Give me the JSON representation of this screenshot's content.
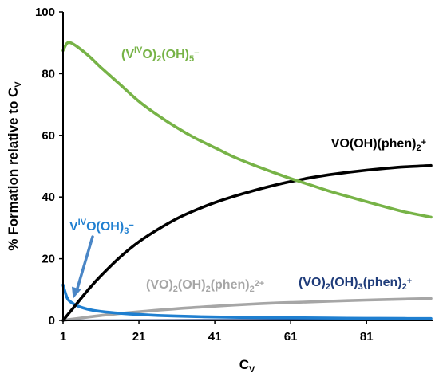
{
  "chart_data": {
    "type": "line",
    "xlabel": {
      "base": "C",
      "sub": "V"
    },
    "ylabel": {
      "text": "% Formation relative to C",
      "sub": "V"
    },
    "xlim": [
      1,
      98
    ],
    "ylim": [
      0,
      100
    ],
    "xticks": [
      1,
      21,
      41,
      61,
      81
    ],
    "yticks": [
      0,
      20,
      40,
      60,
      80,
      100
    ],
    "xtick_labels": [
      "1",
      "21",
      "41",
      "61",
      "81"
    ],
    "ytick_labels": [
      "0",
      "20",
      "40",
      "60",
      "80",
      "100"
    ],
    "grid": false,
    "series": [
      {
        "label_parts": [
          [
            "(V",
            ""
          ],
          [
            "IV",
            "sup"
          ],
          [
            "O)",
            ""
          ],
          [
            "2",
            "sub"
          ],
          [
            "(OH)",
            ""
          ],
          [
            "5",
            "sub"
          ],
          [
            "−",
            "sup"
          ]
        ],
        "color": "#77b347",
        "x": [
          1,
          2,
          3,
          5,
          8,
          11,
          16,
          21,
          26,
          31,
          36,
          41,
          46,
          51,
          56,
          61,
          66,
          71,
          76,
          81,
          86,
          91,
          98
        ],
        "y": [
          87.5,
          89.8,
          90.0,
          88.5,
          85.5,
          82.0,
          76.5,
          71.0,
          66.5,
          62.5,
          59.0,
          56.0,
          53.0,
          50.5,
          48.2,
          46.0,
          44.0,
          42.0,
          40.2,
          38.5,
          36.8,
          35.2,
          33.5
        ]
      },
      {
        "label_parts": [
          [
            "VO(OH)(phen)",
            ""
          ],
          [
            "2",
            "sub"
          ],
          [
            "+",
            "sup"
          ]
        ],
        "color": "#000000",
        "x": [
          1,
          3,
          5,
          8,
          11,
          16,
          21,
          26,
          31,
          36,
          41,
          46,
          51,
          56,
          61,
          66,
          71,
          76,
          81,
          86,
          91,
          98
        ],
        "y": [
          0,
          3.0,
          6.0,
          10.5,
          14.5,
          20.5,
          25.5,
          29.5,
          33.0,
          35.8,
          38.2,
          40.2,
          42.0,
          43.6,
          45.0,
          46.2,
          47.2,
          48.0,
          48.7,
          49.3,
          49.8,
          50.2
        ]
      },
      {
        "label_parts": [
          [
            "V",
            ""
          ],
          [
            "IV",
            "sup"
          ],
          [
            "O(OH)",
            ""
          ],
          [
            "3",
            "sub"
          ],
          [
            "−",
            "sup"
          ]
        ],
        "color": "#1f7fd0",
        "x": [
          1,
          2,
          3,
          5,
          8,
          11,
          16,
          21,
          26,
          31,
          36,
          41,
          51,
          61,
          71,
          81,
          91,
          98
        ],
        "y": [
          11.5,
          7.5,
          6.0,
          4.6,
          3.5,
          2.9,
          2.3,
          1.9,
          1.6,
          1.4,
          1.25,
          1.1,
          0.95,
          0.85,
          0.75,
          0.68,
          0.62,
          0.6
        ]
      },
      {
        "label_parts": [
          [
            "(VO)",
            ""
          ],
          [
            "2",
            "sub"
          ],
          [
            "(OH)",
            ""
          ],
          [
            "2",
            "sub"
          ],
          [
            "(phen)",
            ""
          ],
          [
            "2",
            "sub"
          ],
          [
            "2+",
            "sup"
          ]
        ],
        "color": "#a6a6a6",
        "x": [
          1,
          11,
          21,
          31,
          41,
          51,
          61,
          71,
          81,
          91,
          98
        ],
        "y": [
          0,
          1.6,
          2.8,
          3.8,
          4.6,
          5.3,
          5.8,
          6.2,
          6.6,
          6.9,
          7.1
        ]
      },
      {
        "label_parts": [
          [
            "(VO)",
            ""
          ],
          [
            "2",
            "sub"
          ],
          [
            "(OH)",
            ""
          ],
          [
            "3",
            "sub"
          ],
          [
            "(phen)",
            ""
          ],
          [
            "2",
            "sub"
          ],
          [
            "+",
            "sup"
          ]
        ],
        "color": "#1f3c7a",
        "x": [
          1,
          21,
          41,
          61,
          81,
          98
        ],
        "y": [
          0,
          0.1,
          0.15,
          0.2,
          0.22,
          0.25
        ]
      }
    ],
    "annotations": [
      {
        "series_index": 2,
        "type": "arrow",
        "color": "#4a86c6",
        "points_to": [
          3,
          6
        ]
      }
    ]
  }
}
